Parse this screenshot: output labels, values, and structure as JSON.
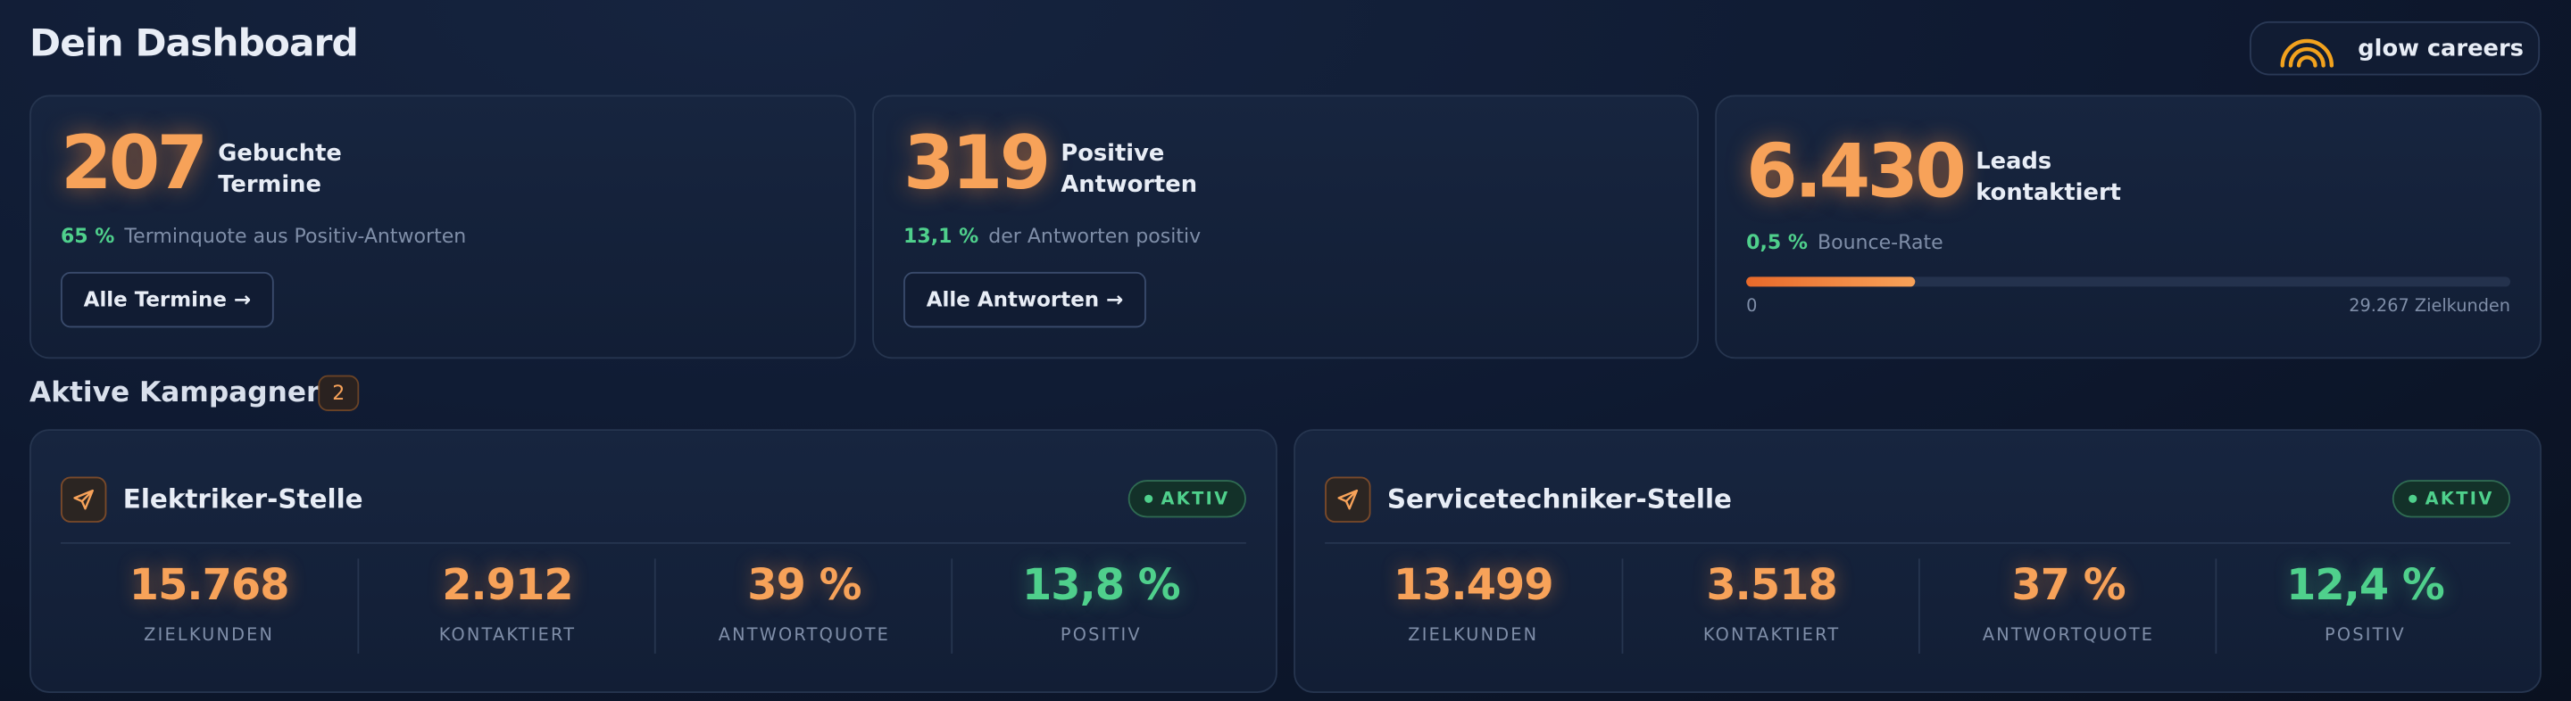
{
  "header": {
    "title": "Dein Dashboard",
    "brand": "glow careers"
  },
  "stats": [
    {
      "value": "207",
      "label": "Gebuchte Termine",
      "rate": "65 %",
      "rate_text": "Terminquote aus Positiv-Antworten",
      "button": "Alle Termine →"
    },
    {
      "value": "319",
      "label": "Positive Antworten",
      "rate": "13,1 %",
      "rate_text": "der Antworten positiv",
      "button": "Alle Antworten →"
    },
    {
      "value": "6.430",
      "label": "Leads kontaktiert",
      "rate": "0,5 %",
      "rate_text": "Bounce-Rate",
      "progress_start": "0",
      "progress_end": "29.267 Zielkunden"
    }
  ],
  "campaigns": {
    "heading": "Aktive Kampagnen",
    "count": "2",
    "items": [
      {
        "name": "Elektriker-Stelle",
        "status": "AKTIV",
        "metrics": [
          {
            "value": "15.768",
            "label": "ZIELKUNDEN"
          },
          {
            "value": "2.912",
            "label": "KONTAKTIERT"
          },
          {
            "value": "39 %",
            "label": "ANTWORTQUOTE"
          },
          {
            "value": "13,8 %",
            "label": "POSITIV"
          }
        ]
      },
      {
        "name": "Servicetechniker-Stelle",
        "status": "AKTIV",
        "metrics": [
          {
            "value": "13.499",
            "label": "ZIELKUNDEN"
          },
          {
            "value": "3.518",
            "label": "KONTAKTIERT"
          },
          {
            "value": "37 %",
            "label": "ANTWORTQUOTE"
          },
          {
            "value": "12,4 %",
            "label": "POSITIV"
          }
        ]
      }
    ]
  }
}
